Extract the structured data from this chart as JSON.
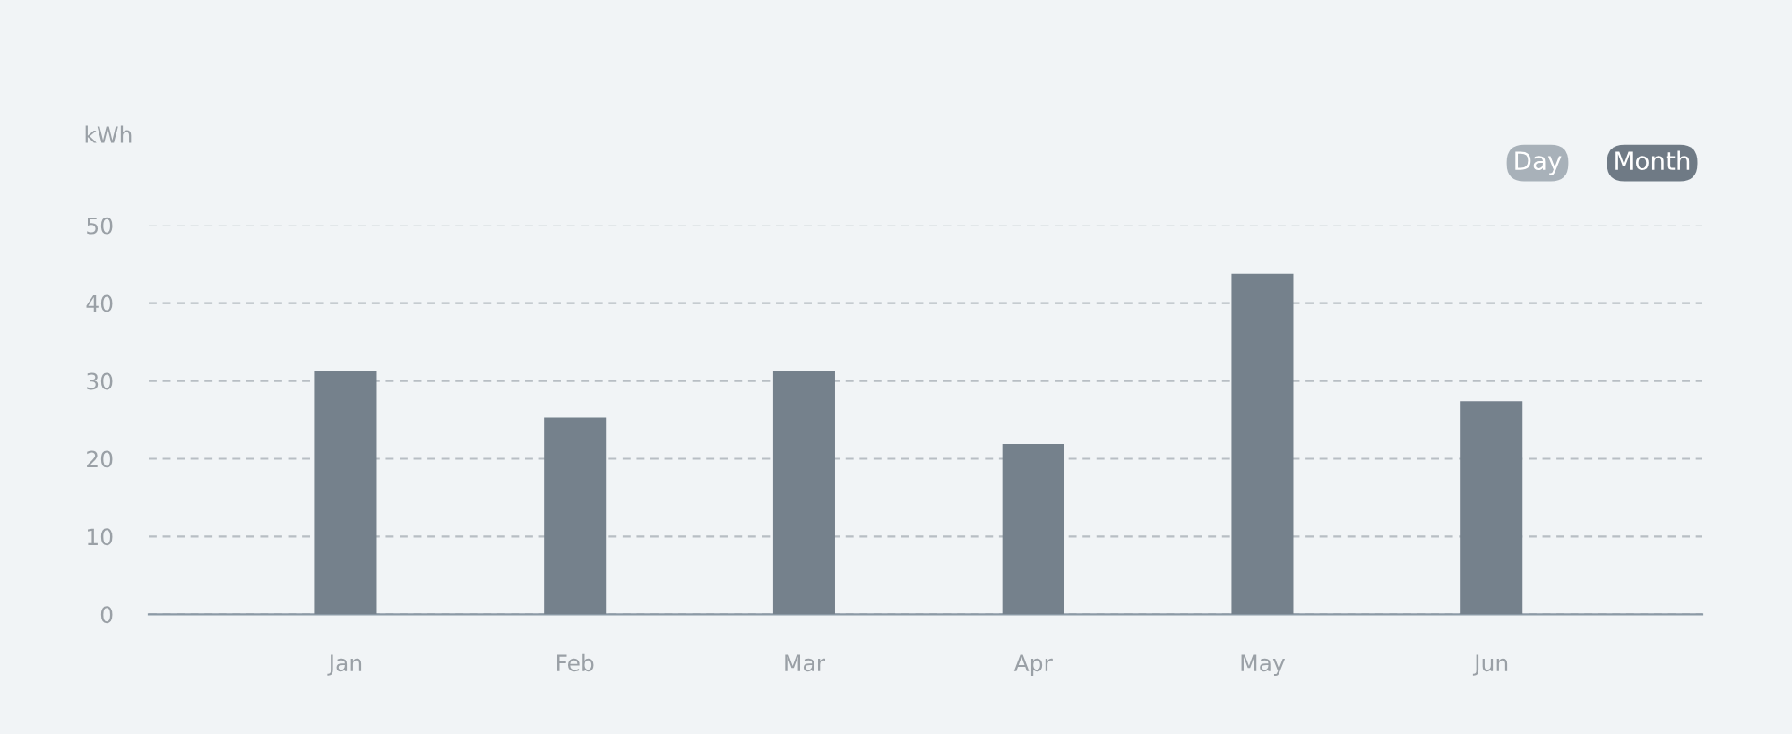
{
  "chart_data": {
    "type": "bar",
    "ylabel": "kWh",
    "categories": [
      "Jan",
      "Feb",
      "Mar",
      "Apr",
      "May",
      "Jun"
    ],
    "series": [
      {
        "color": "#75818c",
        "values": [
          31.3,
          25.3,
          31.3,
          21.9,
          43.8,
          27.4
        ]
      }
    ],
    "ylim": [
      0,
      50
    ],
    "yticks": [
      0,
      10,
      20,
      30,
      40,
      50
    ],
    "grid": "y",
    "legend": false,
    "annotations": [
      "Day",
      "Month"
    ]
  }
}
